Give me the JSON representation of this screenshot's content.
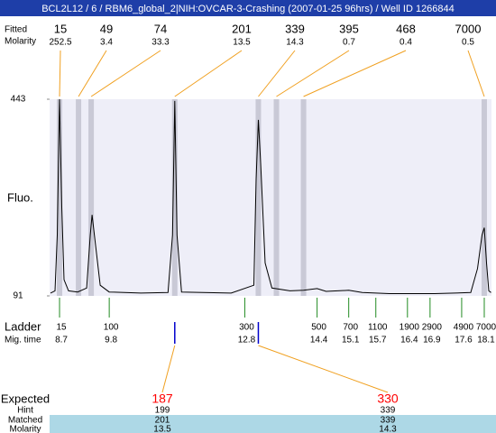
{
  "chart_data": {
    "type": "electropherogram",
    "title": "BCL2L12 / 6 / RBM6_global_2|NIH:OVCAR-3-Crashing (2007-01-25 96hrs) / Well ID 1266844",
    "row_labels": {
      "size": "Fitted",
      "molarity": "Molarity",
      "ladder": "Ladder",
      "mig_time": "Mig. time",
      "expected": "Expected",
      "hint": "Hint",
      "matched": "Matched",
      "matched_molarity": "Molarity"
    },
    "y_label": "Fluo.",
    "ylim": [
      91,
      443
    ],
    "yticks": [
      91,
      443
    ],
    "xlim": [
      8.48,
      18.26
    ],
    "peaks": {
      "sizes": [
        15,
        49,
        74,
        201,
        339,
        395,
        468,
        7000
      ],
      "molarity": [
        252.5,
        3.4,
        33.3,
        13.5,
        14.3,
        0.7,
        0.4,
        0.5
      ],
      "time": [
        8.7,
        9.12,
        9.4,
        11.25,
        13.1,
        13.5,
        14.1,
        18.1
      ]
    },
    "ladder": {
      "sizes": [
        15,
        100,
        300,
        500,
        700,
        1100,
        1900,
        2900,
        4900,
        7000
      ],
      "mig_times": [
        8.7,
        9.8,
        12.8,
        14.4,
        15.1,
        15.7,
        16.4,
        16.9,
        17.6,
        18.1
      ]
    },
    "expected": {
      "expected": [
        187,
        330
      ],
      "hint": [
        199,
        339
      ],
      "matched": [
        201,
        339
      ],
      "molarity": [
        13.5,
        14.3
      ]
    },
    "trace": {
      "x": [
        8.5,
        8.6,
        8.65,
        8.7,
        8.75,
        8.8,
        8.9,
        9.1,
        9.3,
        9.38,
        9.42,
        9.5,
        9.6,
        9.8,
        10.5,
        11.1,
        11.2,
        11.25,
        11.3,
        11.4,
        12.5,
        13.0,
        13.05,
        13.1,
        13.15,
        13.25,
        13.4,
        13.8,
        14.1,
        14.4,
        14.6,
        15.1,
        15.4,
        16.0,
        17.0,
        17.8,
        17.95,
        18.05,
        18.1,
        18.15,
        18.2,
        18.25
      ],
      "y": [
        96,
        100,
        200,
        443,
        250,
        120,
        100,
        98,
        105,
        200,
        236,
        180,
        110,
        98,
        96,
        97,
        200,
        440,
        200,
        98,
        96,
        110,
        300,
        406,
        330,
        150,
        105,
        100,
        101,
        104,
        99,
        101,
        97,
        95,
        95,
        97,
        140,
        200,
        213,
        150,
        100,
        97
      ]
    },
    "colors": {
      "plot_bg": "#eeeef8",
      "band": "#c9c9d6",
      "trace": "#000000",
      "ladder": "#228b22",
      "leader": "#f0a020",
      "marker": "#0000cc",
      "expected": "#ff0000",
      "row_bg": "#add8e6"
    }
  }
}
